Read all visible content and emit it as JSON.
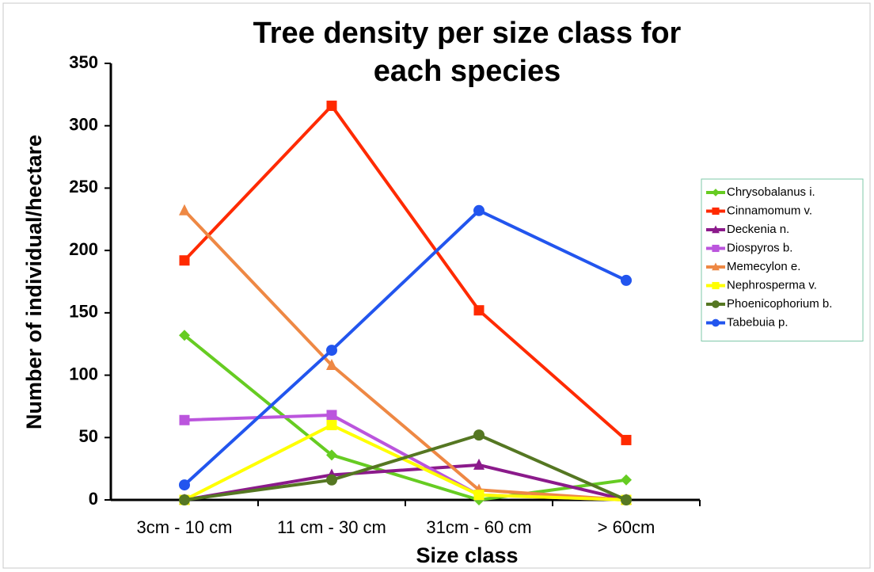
{
  "chart_data": {
    "type": "line",
    "title": "Tree density per size class for each species",
    "xlabel": "Size class",
    "ylabel": "Number of individual/hectare",
    "categories": [
      "3cm - 10 cm",
      "11 cm - 30 cm",
      "31cm - 60 cm",
      "> 60cm"
    ],
    "ylim": [
      0,
      350
    ],
    "yticks": [
      0,
      50,
      100,
      150,
      200,
      250,
      300,
      350
    ],
    "grid": false,
    "legend": "right",
    "series": [
      {
        "name": "Chrysobalanus i.",
        "color": "#66cc22",
        "marker": "diamond",
        "values": [
          132,
          36,
          0,
          16
        ]
      },
      {
        "name": "Cinnamomum v.",
        "color": "#ff2a00",
        "marker": "square",
        "values": [
          192,
          316,
          152,
          48
        ]
      },
      {
        "name": "Deckenia n.",
        "color": "#8b1a8b",
        "marker": "triangle",
        "values": [
          0,
          20,
          28,
          0
        ]
      },
      {
        "name": "Diospyros b.",
        "color": "#bb55dd",
        "marker": "square",
        "values": [
          64,
          68,
          4,
          0
        ]
      },
      {
        "name": "Memecylon e.",
        "color": "#ee8844",
        "marker": "triangle",
        "values": [
          232,
          108,
          8,
          0
        ]
      },
      {
        "name": "Nephrosperma v.",
        "color": "#ffff00",
        "marker": "square",
        "values": [
          0,
          60,
          4,
          0
        ]
      },
      {
        "name": "Phoenicophorium b.",
        "color": "#557722",
        "marker": "circle",
        "values": [
          0,
          16,
          52,
          0
        ]
      },
      {
        "name": "Tabebuia p.",
        "color": "#2255ee",
        "marker": "circle",
        "values": [
          12,
          120,
          232,
          176
        ]
      }
    ]
  }
}
